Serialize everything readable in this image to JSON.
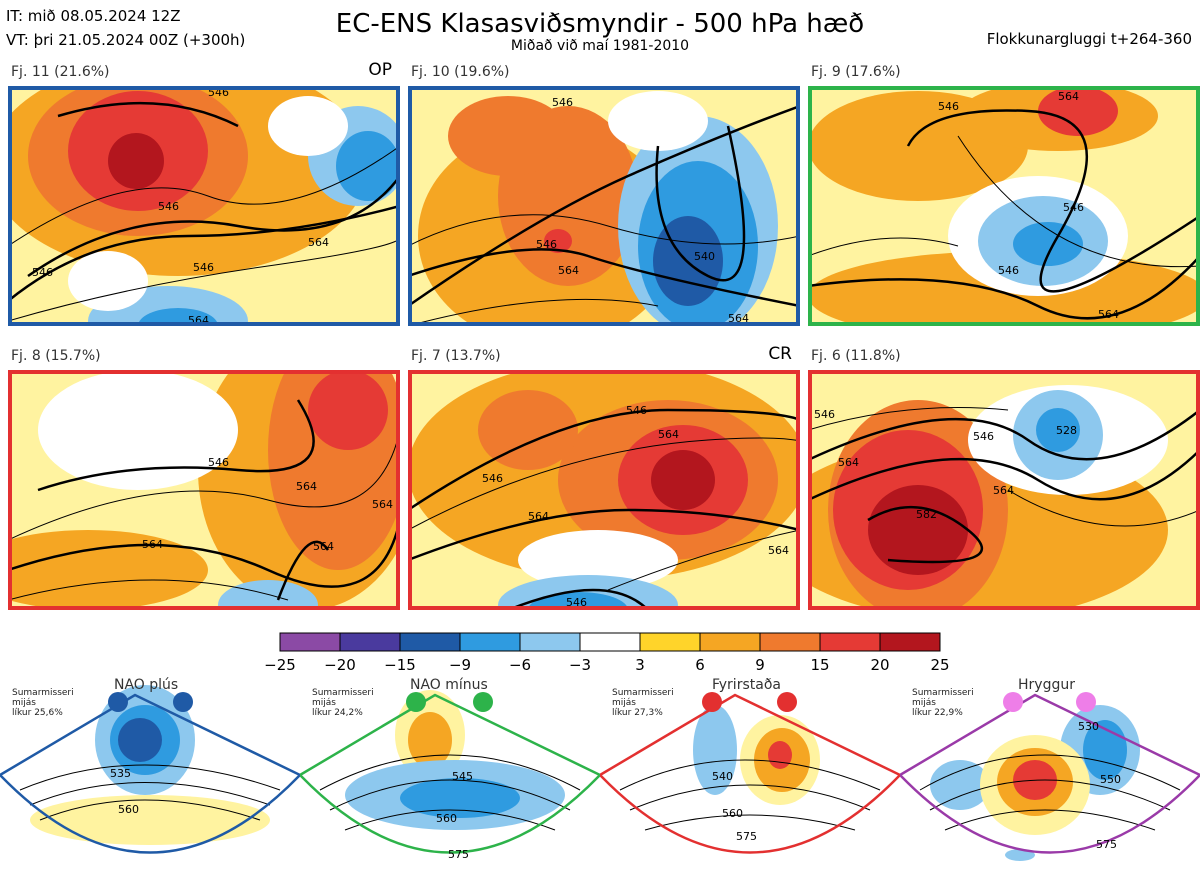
{
  "header": {
    "it_line": "IT: mið 08.05.2024 12Z",
    "vt_line": "VT: þri 21.05.2024 00Z  (+300h)",
    "title": "EC-ENS Klasasviðsmyndir - 500 hPa hæð",
    "subtitle": "Miðað við maí 1981-2010",
    "window": "Flokkunargluggi t+264-360"
  },
  "panels": [
    {
      "label": "Fj. 11 (21.6%)",
      "tag": "OP",
      "border_color": "#1f5aa6",
      "contours": [
        "546",
        "546",
        "546",
        "564",
        "546",
        "564"
      ]
    },
    {
      "label": "Fj. 10 (19.6%)",
      "tag": "",
      "border_color": "#1f5aa6",
      "contours": [
        "546",
        "546",
        "564",
        "540",
        "564"
      ]
    },
    {
      "label": "Fj. 9 (17.6%)",
      "tag": "",
      "border_color": "#2db34a",
      "contours": [
        "546",
        "564",
        "546",
        "546",
        "564"
      ]
    },
    {
      "label": "Fj. 8 (15.7%)",
      "tag": "",
      "border_color": "#e33030",
      "contours": [
        "546",
        "564",
        "564",
        "564",
        "564"
      ]
    },
    {
      "label": "Fj. 7 (13.7%)",
      "tag": "CR",
      "border_color": "#e33030",
      "contours": [
        "546",
        "546",
        "564",
        "564",
        "564",
        "546"
      ]
    },
    {
      "label": "Fj. 6 (11.8%)",
      "tag": "",
      "border_color": "#e33030",
      "contours": [
        "546",
        "546",
        "564",
        "564",
        "582",
        "528"
      ]
    }
  ],
  "colorbar": {
    "labels": [
      "−25",
      "−20",
      "−15",
      "−9",
      "−6",
      "−3",
      "3",
      "6",
      "9",
      "15",
      "20",
      "25"
    ],
    "colors": [
      "#8b4aa5",
      "#4a3a9e",
      "#1f5aa6",
      "#2f9be0",
      "#8dc8ee",
      "#ffffff",
      "#fff3a0",
      "#ffd42a",
      "#f5a623",
      "#ef7a2e",
      "#e53a35",
      "#b3161e"
    ]
  },
  "regimes": [
    {
      "name": "NAO plús",
      "note": "Sumarmisseri\nmijás\nlíkur 25,6%",
      "color": "#1f5aa6",
      "contours": [
        "535",
        "560"
      ]
    },
    {
      "name": "NAO mínus",
      "note": "Sumarmisseri\nmijás\nlíkur 24,2%",
      "color": "#2db34a",
      "contours": [
        "545",
        "560",
        "575"
      ]
    },
    {
      "name": "Fyrirstaða",
      "note": "Sumarmisseri\nmijás\nlíkur 27,3%",
      "color": "#e33030",
      "contours": [
        "540",
        "560",
        "575"
      ]
    },
    {
      "name": "Hryggur",
      "note": "Sumarmisseri\nmijás\nlíkur 22,9%",
      "color": "#9a3aa8",
      "contours": [
        "530",
        "550",
        "575"
      ]
    }
  ]
}
